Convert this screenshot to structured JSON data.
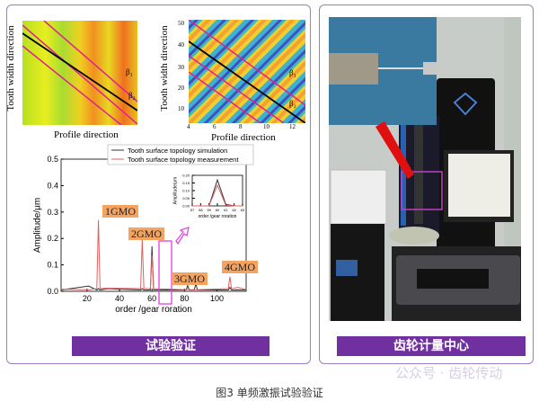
{
  "left_panel": {
    "map1": {
      "ylabel": "Tooth width direction",
      "xlabel": "Profile direction",
      "beta_labels": [
        "β₁",
        "β₂"
      ]
    },
    "map2": {
      "ylabel": "Tooth width direction",
      "xlabel": "Profile direction",
      "yticks": [
        "10",
        "20",
        "30",
        "40",
        "50"
      ],
      "xticks": [
        "4",
        "6",
        "8",
        "10",
        "12"
      ],
      "beta_labels": [
        "β₁",
        "β₂"
      ]
    },
    "footer": "试验验证"
  },
  "right_panel": {
    "footer": "齿轮计量中心"
  },
  "watermark": "公众号 · 齿轮传动",
  "caption": "图3 单频激振试验验证",
  "chart_data": [
    {
      "type": "line",
      "xlabel": "order /gear roration",
      "ylabel": "Amplitude/μm",
      "xlim": [
        4,
        118
      ],
      "ylim": [
        0,
        0.5
      ],
      "xticks": [
        "20",
        "40",
        "60",
        "80",
        "100"
      ],
      "yticks": [
        "0.0",
        "0.1",
        "0.2",
        "0.3",
        "0.4",
        "0.5"
      ],
      "legend_position": "top",
      "annotations": [
        "1GMO",
        "2GMO",
        "3GMO",
        "4GMO"
      ],
      "series": [
        {
          "name": "Tooth surface topology simulation",
          "color": "#333333",
          "x": [
            4,
            21,
            26,
            27,
            28,
            33,
            53,
            54,
            55,
            59,
            60,
            61,
            81,
            82,
            83,
            86,
            87,
            88,
            107,
            108,
            109,
            113,
            118
          ],
          "y": [
            0.005,
            0.02,
            0.005,
            0.01,
            0.005,
            0.01,
            0.005,
            0.01,
            0.005,
            0.005,
            0.17,
            0.005,
            0.005,
            0.022,
            0.005,
            0.005,
            0.028,
            0.005,
            0.005,
            0.015,
            0.005,
            0.005,
            0.005
          ]
        },
        {
          "name": "Tooth surface topology measurement",
          "color": "#e06060",
          "x": [
            4,
            21,
            26,
            27,
            28,
            33,
            53,
            54,
            55,
            59,
            60,
            61,
            81,
            82,
            83,
            86,
            87,
            88,
            107,
            108,
            109,
            113,
            118
          ],
          "y": [
            0.008,
            0.006,
            0.01,
            0.27,
            0.01,
            0.012,
            0.01,
            0.195,
            0.01,
            0.01,
            0.135,
            0.01,
            0.006,
            0.008,
            0.006,
            0.006,
            0.006,
            0.006,
            0.01,
            0.055,
            0.01,
            0.015,
            0.006
          ]
        }
      ]
    },
    {
      "type": "line",
      "xlabel": "order /gear roration",
      "ylabel": "Amplitude/μm",
      "xlim": [
        57,
        63
      ],
      "ylim": [
        0,
        0.2
      ],
      "xticks": [
        "57",
        "58",
        "59",
        "60",
        "61",
        "62",
        "63"
      ],
      "yticks": [
        "0.00",
        "0.05",
        "0.10",
        "0.15",
        "0.20"
      ],
      "series": [
        {
          "color": "#333333",
          "x": [
            57,
            58,
            59,
            60,
            61,
            62,
            63
          ],
          "y": [
            0.0,
            0.0,
            0.0,
            0.17,
            0.01,
            0.0,
            0.0
          ]
        },
        {
          "color": "#e06060",
          "x": [
            57,
            58,
            59,
            60,
            61,
            62,
            63
          ],
          "y": [
            0.0,
            0.0,
            0.0,
            0.135,
            0.005,
            0.0,
            0.0
          ]
        }
      ]
    }
  ]
}
